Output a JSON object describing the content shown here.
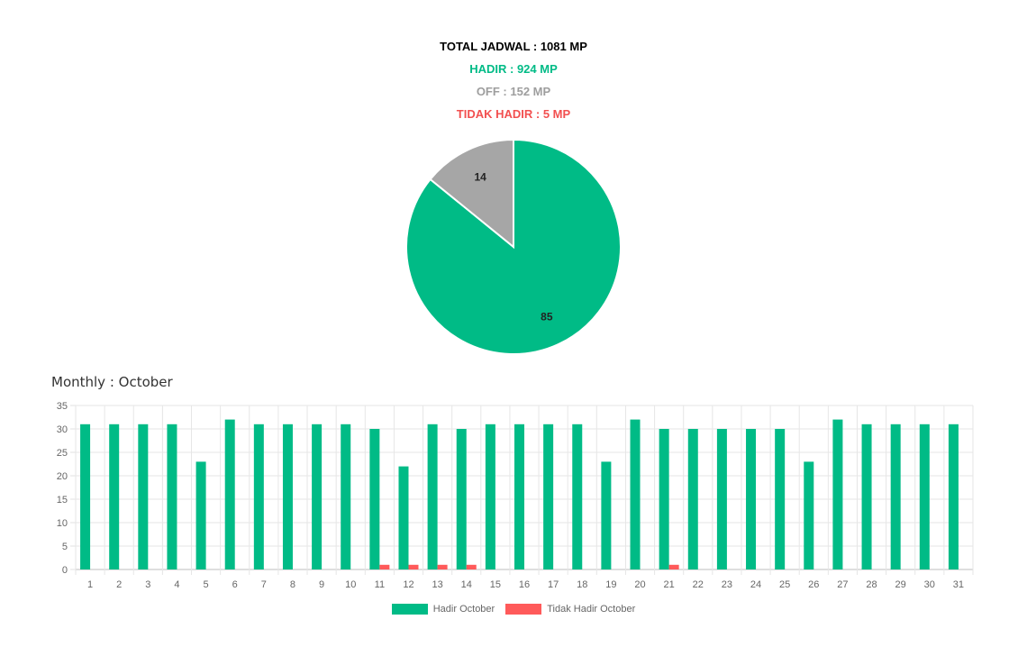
{
  "summary": {
    "total": "TOTAL JADWAL : 1081 MP",
    "hadir": "HADIR : 924 MP",
    "off": "OFF : 152 MP",
    "tidak_hadir": "TIDAK HADIR : 5 MP"
  },
  "monthly_title": "Monthly : October",
  "colors": {
    "hadir": "#00bb86",
    "off": "#a6a6a6",
    "tidak_hadir": "#ff5a5a"
  },
  "chart_data": [
    {
      "type": "pie",
      "slices": [
        {
          "value": 85,
          "label": "85",
          "color": "#00bb86"
        },
        {
          "value": 14,
          "label": "14",
          "color": "#a6a6a6"
        }
      ]
    },
    {
      "type": "bar",
      "categories": [
        "1",
        "2",
        "3",
        "4",
        "5",
        "6",
        "7",
        "8",
        "9",
        "10",
        "11",
        "12",
        "13",
        "14",
        "15",
        "16",
        "17",
        "18",
        "19",
        "20",
        "21",
        "22",
        "23",
        "24",
        "25",
        "26",
        "27",
        "28",
        "29",
        "30",
        "31"
      ],
      "series": [
        {
          "name": "Hadir October",
          "color": "#00bb86",
          "values": [
            31,
            31,
            31,
            31,
            23,
            32,
            31,
            31,
            31,
            31,
            30,
            22,
            31,
            30,
            31,
            31,
            31,
            31,
            23,
            32,
            30,
            30,
            30,
            30,
            30,
            23,
            32,
            31,
            31,
            31,
            31
          ]
        },
        {
          "name": "Tidak Hadir October",
          "color": "#ff5a5a",
          "values": [
            0,
            0,
            0,
            0,
            0,
            0,
            0,
            0,
            0,
            0,
            1,
            1,
            1,
            1,
            0,
            0,
            0,
            0,
            0,
            0,
            1,
            0,
            0,
            0,
            0,
            0,
            0,
            0,
            0,
            0,
            0
          ]
        }
      ],
      "ylim": [
        0,
        35
      ],
      "yticks": [
        0,
        5,
        10,
        15,
        20,
        25,
        30,
        35
      ],
      "grid": true,
      "legend_position": "bottom"
    }
  ]
}
